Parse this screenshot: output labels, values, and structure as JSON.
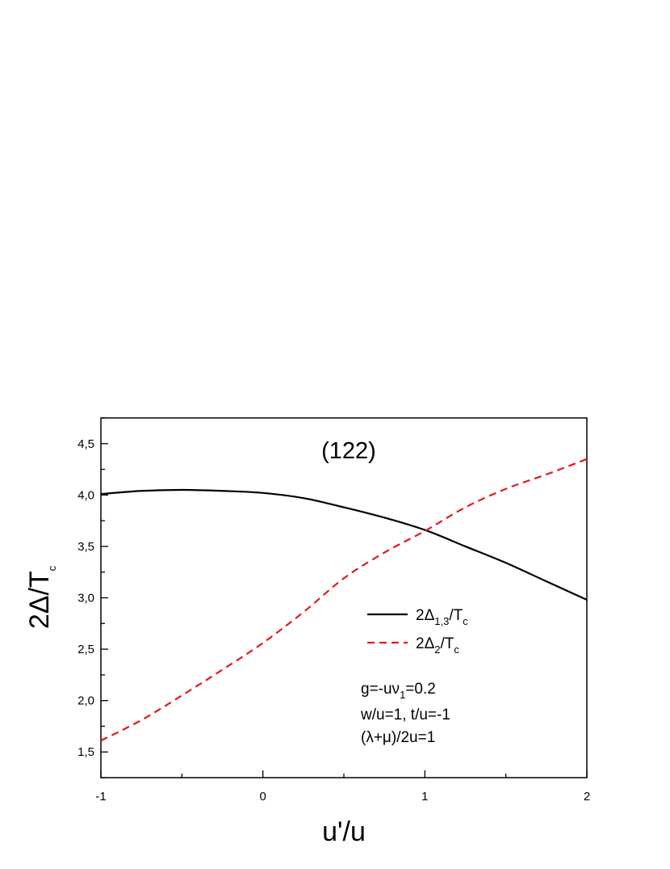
{
  "chart_data": {
    "type": "line",
    "title": "(122)",
    "xlabel": "u'/u",
    "ylabel": {
      "main": "2Δ/T",
      "sub": "c"
    },
    "xlim": [
      -1,
      2
    ],
    "ylim": [
      1.25,
      4.75
    ],
    "x_ticks": [
      -1,
      0,
      1,
      2
    ],
    "x_tick_labels": [
      "-1",
      "0",
      "1",
      "2"
    ],
    "y_ticks": [
      1.5,
      2.0,
      2.5,
      3.0,
      3.5,
      4.0,
      4.5
    ],
    "y_tick_labels": [
      "1,5",
      "2,0",
      "2,5",
      "3,0",
      "3,5",
      "4,0",
      "4,5"
    ],
    "grid": false,
    "legend_position": "center-right",
    "series": [
      {
        "name": {
          "main": "2Δ",
          "sub": "1,3",
          "tail": "/T",
          "tail_sub": "c"
        },
        "style": "solid",
        "color": "#000000",
        "x": [
          -1.0,
          -0.75,
          -0.5,
          -0.25,
          0.0,
          0.25,
          0.5,
          0.75,
          1.0,
          1.25,
          1.5,
          1.75,
          2.0
        ],
        "y": [
          4.01,
          4.04,
          4.05,
          4.04,
          4.02,
          3.97,
          3.88,
          3.78,
          3.66,
          3.5,
          3.34,
          3.16,
          2.98
        ]
      },
      {
        "name": {
          "main": "2Δ",
          "sub": "2",
          "tail": "/T",
          "tail_sub": "c"
        },
        "style": "dashed",
        "color": "#e3191c",
        "x": [
          -1.0,
          -0.75,
          -0.5,
          -0.25,
          0.0,
          0.25,
          0.5,
          0.75,
          1.0,
          1.25,
          1.5,
          1.75,
          2.0
        ],
        "y": [
          1.61,
          1.81,
          2.05,
          2.3,
          2.56,
          2.86,
          3.19,
          3.44,
          3.65,
          3.88,
          4.06,
          4.2,
          4.35
        ]
      }
    ],
    "annotations": [
      {
        "main": "g=-uν",
        "sub": "1",
        "tail": "=0.2"
      },
      {
        "main": "w/u=1, t/u=-1",
        "sub": "",
        "tail": ""
      },
      {
        "main": "(λ+μ)/2u=1",
        "sub": "",
        "tail": ""
      }
    ]
  }
}
